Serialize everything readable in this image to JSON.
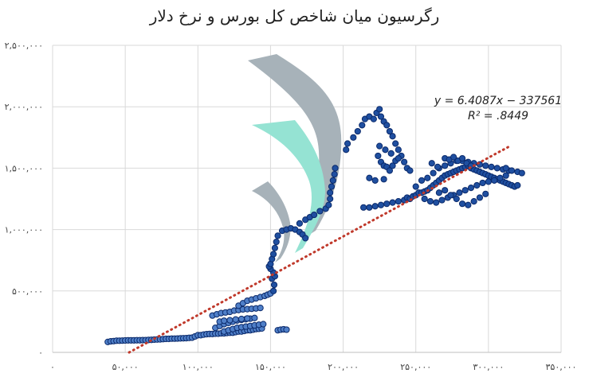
{
  "chart_data": {
    "type": "scatter",
    "title": "رگرسیون میان شاخص کل بورس و نرخ دلار",
    "xlabel": "",
    "ylabel": "",
    "xlim": [
      0,
      350000
    ],
    "ylim": [
      0,
      2500000
    ],
    "x_ticks": [
      0,
      50000,
      100000,
      150000,
      200000,
      250000,
      300000,
      350000
    ],
    "x_tick_labels": [
      "۰",
      "۵۰,۰۰۰",
      "۱۰۰,۰۰۰",
      "۱۵۰,۰۰۰",
      "۲۰۰,۰۰۰",
      "۲۵۰,۰۰۰",
      "۳۰۰,۰۰۰",
      "۳۵۰,۰۰۰"
    ],
    "y_ticks": [
      0,
      500000,
      1000000,
      1500000,
      2000000,
      2500000
    ],
    "y_tick_labels": [
      "۰",
      "۵۰۰,۰۰۰",
      "۱,۰۰۰,۰۰۰",
      "۱,۵۰۰,۰۰۰",
      "۲,۰۰۰,۰۰۰",
      "۲,۵۰۰,۰۰۰"
    ],
    "grid": true,
    "legend": "none",
    "equation": "y = 6.4087x − 337561",
    "r_squared": "R² =  .8449",
    "trendline": {
      "slope": 6.4087,
      "intercept": -337561,
      "x_range": [
        52670,
        315000
      ],
      "color": "#c0392b",
      "style": "dotted"
    },
    "colors": {
      "marker_fill": "#1f4fa0",
      "marker_edge": "#0b2a6b",
      "marker_fill_light": "#4f7fc8",
      "grid": "#d9d9d9"
    },
    "series": [
      {
        "points": [
          [
            38000,
            85000
          ],
          [
            40000,
            90000
          ],
          [
            42000,
            92000
          ],
          [
            44000,
            95000
          ],
          [
            46000,
            95000
          ],
          [
            48000,
            96000
          ],
          [
            50000,
            97000
          ],
          [
            52000,
            98000
          ],
          [
            54000,
            98000
          ],
          [
            56000,
            98000
          ],
          [
            58000,
            99000
          ],
          [
            60000,
            99000
          ],
          [
            62000,
            100000
          ],
          [
            64000,
            100000
          ],
          [
            66000,
            101000
          ],
          [
            68000,
            102000
          ],
          [
            70000,
            104000
          ],
          [
            72000,
            105000
          ],
          [
            74000,
            106000
          ],
          [
            76000,
            108000
          ],
          [
            78000,
            110000
          ],
          [
            80000,
            110000
          ],
          [
            82000,
            112000
          ],
          [
            84000,
            112000
          ],
          [
            86000,
            113000
          ],
          [
            88000,
            114000
          ],
          [
            90000,
            115000
          ],
          [
            92000,
            116000
          ],
          [
            94000,
            118000
          ],
          [
            96000,
            120000
          ],
          [
            98000,
            130000
          ],
          [
            100000,
            140000
          ],
          [
            102000,
            140000
          ],
          [
            104000,
            145000
          ],
          [
            106000,
            148000
          ],
          [
            108000,
            150000
          ],
          [
            110000,
            150000
          ],
          [
            112000,
            152000
          ],
          [
            114000,
            152000
          ],
          [
            116000,
            155000
          ],
          [
            118000,
            155000
          ],
          [
            120000,
            158000
          ],
          [
            122000,
            160000
          ],
          [
            124000,
            160000
          ],
          [
            126000,
            165000
          ],
          [
            128000,
            170000
          ],
          [
            130000,
            170000
          ],
          [
            132000,
            175000
          ],
          [
            134000,
            180000
          ],
          [
            136000,
            180000
          ],
          [
            138000,
            185000
          ],
          [
            140000,
            190000
          ],
          [
            142000,
            192000
          ],
          [
            144000,
            195000
          ],
          [
            110000,
            300000
          ],
          [
            113000,
            310000
          ],
          [
            116000,
            320000
          ],
          [
            119000,
            325000
          ],
          [
            122000,
            330000
          ],
          [
            125000,
            340000
          ],
          [
            128000,
            345000
          ],
          [
            131000,
            350000
          ],
          [
            134000,
            352000
          ],
          [
            137000,
            355000
          ],
          [
            140000,
            358000
          ],
          [
            143000,
            362000
          ],
          [
            112000,
            200000
          ],
          [
            115000,
            215000
          ],
          [
            118000,
            230000
          ],
          [
            121000,
            240000
          ],
          [
            124000,
            250000
          ],
          [
            127000,
            260000
          ],
          [
            130000,
            265000
          ],
          [
            133000,
            270000
          ],
          [
            136000,
            275000
          ],
          [
            139000,
            280000
          ],
          [
            118000,
            170000
          ],
          [
            121000,
            180000
          ],
          [
            124000,
            190000
          ],
          [
            127000,
            200000
          ],
          [
            130000,
            205000
          ],
          [
            133000,
            210000
          ],
          [
            136000,
            215000
          ],
          [
            139000,
            220000
          ],
          [
            142000,
            225000
          ],
          [
            145000,
            230000
          ],
          [
            115000,
            250000
          ],
          [
            118000,
            258000
          ],
          [
            122000,
            262000
          ],
          [
            126000,
            268000
          ],
          [
            130000,
            272000
          ],
          [
            134000,
            276000
          ],
          [
            128000,
            380000
          ],
          [
            131000,
            400000
          ],
          [
            134000,
            420000
          ],
          [
            137000,
            430000
          ],
          [
            140000,
            440000
          ],
          [
            143000,
            450000
          ],
          [
            146000,
            460000
          ],
          [
            148000,
            470000
          ],
          [
            150000,
            480000
          ],
          [
            152000,
            500000
          ],
          [
            152500,
            550000
          ],
          [
            151000,
            600000
          ],
          [
            153000,
            620000
          ],
          [
            152000,
            650000
          ],
          [
            150000,
            680000
          ],
          [
            149000,
            700000
          ],
          [
            150000,
            720000
          ],
          [
            151000,
            760000
          ],
          [
            152000,
            800000
          ],
          [
            153000,
            850000
          ],
          [
            154000,
            900000
          ],
          [
            155000,
            950000
          ],
          [
            155000,
            180000
          ],
          [
            157000,
            185000
          ],
          [
            159000,
            188000
          ],
          [
            161000,
            185000
          ],
          [
            158000,
            990000
          ],
          [
            161000,
            1000000
          ],
          [
            164000,
            1010000
          ],
          [
            167000,
            1000000
          ],
          [
            170000,
            980000
          ],
          [
            172000,
            960000
          ],
          [
            174000,
            930000
          ],
          [
            170000,
            1050000
          ],
          [
            174000,
            1080000
          ],
          [
            177000,
            1100000
          ],
          [
            180000,
            1120000
          ],
          [
            184000,
            1150000
          ],
          [
            188000,
            1170000
          ],
          [
            190000,
            1200000
          ],
          [
            191000,
            1250000
          ],
          [
            191000,
            1300000
          ],
          [
            192000,
            1350000
          ],
          [
            193000,
            1400000
          ],
          [
            194000,
            1450000
          ],
          [
            194500,
            1500000
          ],
          [
            202000,
            1650000
          ],
          [
            203000,
            1700000
          ],
          [
            207000,
            1750000
          ],
          [
            210000,
            1800000
          ],
          [
            213000,
            1850000
          ],
          [
            215000,
            1900000
          ],
          [
            218000,
            1920000
          ],
          [
            221000,
            1900000
          ],
          [
            223000,
            1950000
          ],
          [
            225000,
            1980000
          ],
          [
            226000,
            1920000
          ],
          [
            228000,
            1880000
          ],
          [
            230000,
            1850000
          ],
          [
            232000,
            1800000
          ],
          [
            234000,
            1760000
          ],
          [
            236000,
            1700000
          ],
          [
            238000,
            1650000
          ],
          [
            240000,
            1600000
          ],
          [
            242000,
            1550000
          ],
          [
            244000,
            1500000
          ],
          [
            246000,
            1480000
          ],
          [
            224000,
            1600000
          ],
          [
            226000,
            1550000
          ],
          [
            228000,
            1520000
          ],
          [
            230000,
            1510000
          ],
          [
            232000,
            1480000
          ],
          [
            234000,
            1520000
          ],
          [
            236000,
            1560000
          ],
          [
            238000,
            1580000
          ],
          [
            225000,
            1680000
          ],
          [
            229000,
            1650000
          ],
          [
            233000,
            1620000
          ],
          [
            214000,
            1180000
          ],
          [
            218000,
            1180000
          ],
          [
            222000,
            1190000
          ],
          [
            226000,
            1200000
          ],
          [
            230000,
            1210000
          ],
          [
            234000,
            1220000
          ],
          [
            238000,
            1230000
          ],
          [
            242000,
            1240000
          ],
          [
            244000,
            1260000
          ],
          [
            246000,
            1250000
          ],
          [
            248000,
            1270000
          ],
          [
            250000,
            1280000
          ],
          [
            252000,
            1300000
          ],
          [
            254000,
            1300000
          ],
          [
            256000,
            1310000
          ],
          [
            258000,
            1320000
          ],
          [
            260000,
            1340000
          ],
          [
            262000,
            1360000
          ],
          [
            264000,
            1380000
          ],
          [
            266000,
            1400000
          ],
          [
            268000,
            1420000
          ],
          [
            270000,
            1440000
          ],
          [
            272000,
            1450000
          ],
          [
            274000,
            1460000
          ],
          [
            276000,
            1470000
          ],
          [
            278000,
            1480000
          ],
          [
            280000,
            1490000
          ],
          [
            282000,
            1500000
          ],
          [
            284000,
            1510000
          ],
          [
            286000,
            1520000
          ],
          [
            288000,
            1500000
          ],
          [
            290000,
            1490000
          ],
          [
            292000,
            1480000
          ],
          [
            294000,
            1470000
          ],
          [
            296000,
            1460000
          ],
          [
            298000,
            1450000
          ],
          [
            300000,
            1440000
          ],
          [
            302000,
            1430000
          ],
          [
            304000,
            1420000
          ],
          [
            306000,
            1410000
          ],
          [
            308000,
            1400000
          ],
          [
            310000,
            1390000
          ],
          [
            312000,
            1380000
          ],
          [
            314000,
            1370000
          ],
          [
            316000,
            1360000
          ],
          [
            318000,
            1350000
          ],
          [
            320000,
            1360000
          ],
          [
            250000,
            1350000
          ],
          [
            254000,
            1400000
          ],
          [
            258000,
            1420000
          ],
          [
            262000,
            1460000
          ],
          [
            266000,
            1500000
          ],
          [
            270000,
            1520000
          ],
          [
            274000,
            1540000
          ],
          [
            278000,
            1560000
          ],
          [
            282000,
            1560000
          ],
          [
            286000,
            1550000
          ],
          [
            290000,
            1540000
          ],
          [
            294000,
            1530000
          ],
          [
            298000,
            1520000
          ],
          [
            302000,
            1510000
          ],
          [
            306000,
            1500000
          ],
          [
            310000,
            1490000
          ],
          [
            314000,
            1480000
          ],
          [
            256000,
            1250000
          ],
          [
            260000,
            1230000
          ],
          [
            264000,
            1220000
          ],
          [
            268000,
            1240000
          ],
          [
            272000,
            1260000
          ],
          [
            276000,
            1280000
          ],
          [
            280000,
            1300000
          ],
          [
            284000,
            1320000
          ],
          [
            288000,
            1340000
          ],
          [
            292000,
            1360000
          ],
          [
            296000,
            1380000
          ],
          [
            300000,
            1390000
          ],
          [
            304000,
            1400000
          ],
          [
            308000,
            1420000
          ],
          [
            312000,
            1440000
          ],
          [
            266000,
            1300000
          ],
          [
            270000,
            1320000
          ],
          [
            274000,
            1280000
          ],
          [
            278000,
            1250000
          ],
          [
            282000,
            1210000
          ],
          [
            286000,
            1200000
          ],
          [
            290000,
            1230000
          ],
          [
            294000,
            1260000
          ],
          [
            298000,
            1290000
          ],
          [
            270000,
            1580000
          ],
          [
            273000,
            1570000
          ],
          [
            276000,
            1590000
          ],
          [
            279000,
            1560000
          ],
          [
            282000,
            1580000
          ],
          [
            285000,
            1540000
          ],
          [
            288000,
            1520000
          ],
          [
            261000,
            1540000
          ],
          [
            265000,
            1510000
          ],
          [
            218000,
            1420000
          ],
          [
            222000,
            1400000
          ],
          [
            228000,
            1410000
          ],
          [
            312000,
            1500000
          ],
          [
            316000,
            1480000
          ],
          [
            320000,
            1470000
          ],
          [
            323000,
            1460000
          ]
        ]
      }
    ]
  }
}
